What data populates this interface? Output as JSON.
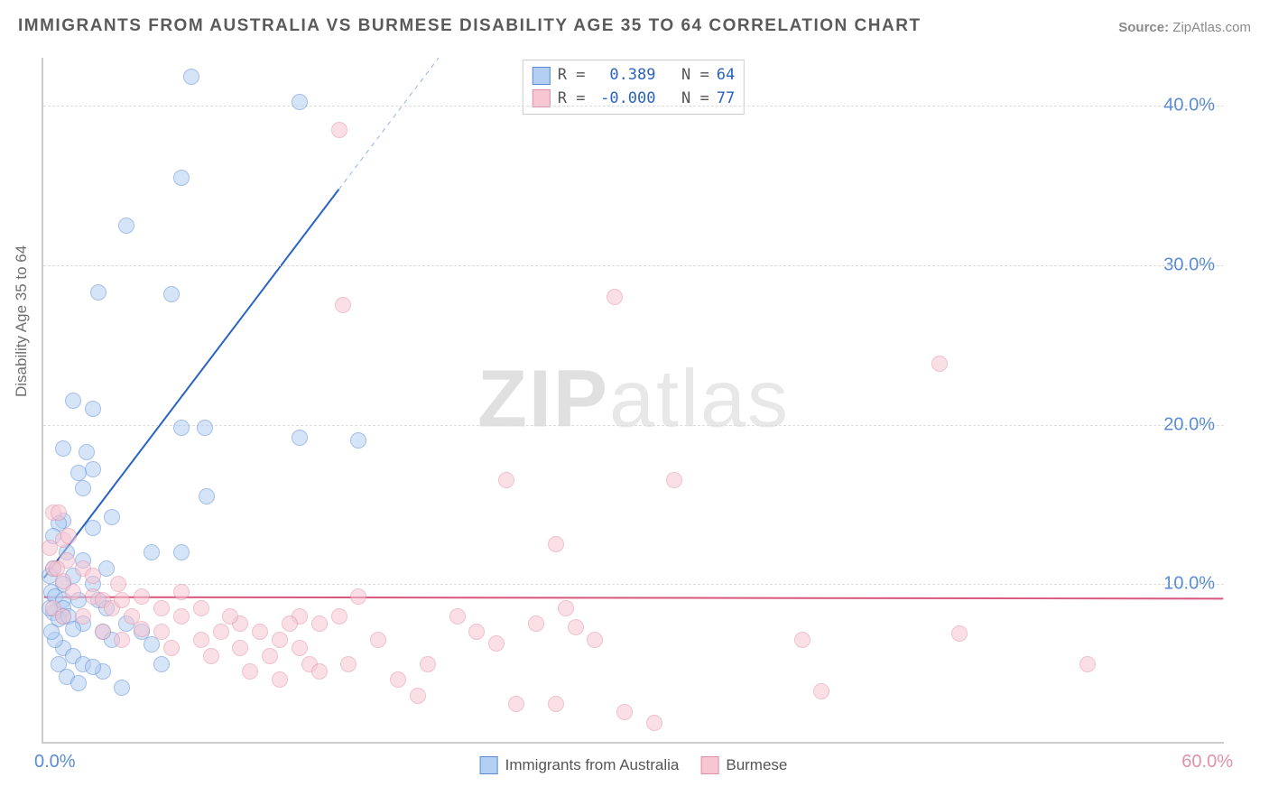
{
  "title": "IMMIGRANTS FROM AUSTRALIA VS BURMESE DISABILITY AGE 35 TO 64 CORRELATION CHART",
  "source_label": "Source:",
  "source_value": "ZipAtlas.com",
  "ylabel": "Disability Age 35 to 64",
  "watermark_zip": "ZIP",
  "watermark_atlas": "atlas",
  "chart": {
    "type": "scatter",
    "background_color": "#ffffff",
    "grid_color": "#dddddd",
    "axis_color": "#cccccc",
    "title_fontsize": 19,
    "label_fontsize": 17,
    "tick_fontsize": 20,
    "xlim": [
      0,
      60
    ],
    "ylim": [
      0,
      43
    ],
    "yticks": [
      10,
      20,
      30,
      40
    ],
    "ytick_labels": [
      "10.0%",
      "20.0%",
      "30.0%",
      "40.0%"
    ],
    "xtick_left": {
      "value": 0,
      "label": "0.0%",
      "color": "#5a8cd6"
    },
    "xtick_right": {
      "value": 60,
      "label": "60.0%",
      "color": "#e091a8"
    },
    "series": [
      {
        "name": "Immigrants from Australia",
        "key": "blue",
        "fill_color": "#b3cff2",
        "stroke_color": "#5a8cd6",
        "fill_opacity": 0.55,
        "marker_r": 9,
        "regression": {
          "y0": 10.3,
          "y_at_x60": 108,
          "solid_xmax": 15,
          "color": "#2962c4",
          "width": 2
        },
        "R": "0.389",
        "N": "64",
        "points": [
          [
            7.5,
            41.8
          ],
          [
            13.0,
            40.2
          ],
          [
            7.0,
            35.5
          ],
          [
            4.2,
            32.5
          ],
          [
            2.8,
            28.3
          ],
          [
            6.5,
            28.2
          ],
          [
            1.5,
            21.5
          ],
          [
            2.5,
            21.0
          ],
          [
            8.2,
            19.8
          ],
          [
            7.0,
            19.8
          ],
          [
            1.0,
            18.5
          ],
          [
            2.2,
            18.3
          ],
          [
            13.0,
            19.2
          ],
          [
            16.0,
            19.0
          ],
          [
            2.5,
            17.2
          ],
          [
            1.8,
            17.0
          ],
          [
            2.0,
            16.0
          ],
          [
            8.3,
            15.5
          ],
          [
            1.0,
            14.0
          ],
          [
            3.5,
            14.2
          ],
          [
            2.5,
            13.5
          ],
          [
            0.8,
            13.8
          ],
          [
            0.5,
            13.0
          ],
          [
            1.2,
            12.0
          ],
          [
            5.5,
            12.0
          ],
          [
            7.0,
            12.0
          ],
          [
            2.0,
            11.5
          ],
          [
            3.2,
            11.0
          ],
          [
            0.5,
            11.0
          ],
          [
            1.5,
            10.5
          ],
          [
            1.0,
            10.0
          ],
          [
            2.5,
            10.0
          ],
          [
            0.4,
            9.5
          ],
          [
            0.6,
            9.2
          ],
          [
            1.0,
            9.0
          ],
          [
            1.0,
            8.5
          ],
          [
            1.0,
            8.0
          ],
          [
            1.8,
            9.0
          ],
          [
            2.8,
            9.0
          ],
          [
            3.2,
            8.5
          ],
          [
            0.5,
            8.2
          ],
          [
            0.8,
            7.8
          ],
          [
            1.3,
            8.0
          ],
          [
            2.0,
            7.5
          ],
          [
            3.0,
            7.0
          ],
          [
            3.5,
            6.5
          ],
          [
            4.2,
            7.5
          ],
          [
            5.0,
            7.0
          ],
          [
            5.5,
            6.2
          ],
          [
            6.0,
            5.0
          ],
          [
            1.0,
            6.0
          ],
          [
            1.5,
            5.5
          ],
          [
            2.0,
            5.0
          ],
          [
            3.0,
            4.5
          ],
          [
            4.0,
            3.5
          ],
          [
            2.5,
            4.8
          ],
          [
            0.8,
            5.0
          ],
          [
            1.2,
            4.2
          ],
          [
            1.8,
            3.8
          ],
          [
            0.6,
            6.5
          ],
          [
            0.4,
            7.0
          ],
          [
            1.5,
            7.2
          ],
          [
            0.3,
            8.5
          ],
          [
            0.3,
            10.5
          ]
        ]
      },
      {
        "name": "Burmese",
        "key": "pink",
        "fill_color": "#f6c6d3",
        "stroke_color": "#e091a8",
        "fill_opacity": 0.55,
        "marker_r": 9,
        "regression": {
          "y0": 9.1,
          "y_at_x60": 9.0,
          "solid_xmax": 60,
          "color": "#d9567e",
          "width": 2
        },
        "R": "-0.000",
        "N": "77",
        "points": [
          [
            15.0,
            38.5
          ],
          [
            15.2,
            27.5
          ],
          [
            29.0,
            28.0
          ],
          [
            45.5,
            23.8
          ],
          [
            23.5,
            16.5
          ],
          [
            32.0,
            16.5
          ],
          [
            26.0,
            12.5
          ],
          [
            0.5,
            14.5
          ],
          [
            0.3,
            12.3
          ],
          [
            0.5,
            11.0
          ],
          [
            1.0,
            10.2
          ],
          [
            0.8,
            14.5
          ],
          [
            1.2,
            11.5
          ],
          [
            2.0,
            11.0
          ],
          [
            1.5,
            9.5
          ],
          [
            2.5,
            9.2
          ],
          [
            3.0,
            9.0
          ],
          [
            3.5,
            8.5
          ],
          [
            4.0,
            9.0
          ],
          [
            4.5,
            8.0
          ],
          [
            5.0,
            9.2
          ],
          [
            6.0,
            8.5
          ],
          [
            7.0,
            9.5
          ],
          [
            0.5,
            8.5
          ],
          [
            1.0,
            8.0
          ],
          [
            2.0,
            8.0
          ],
          [
            3.0,
            7.0
          ],
          [
            4.0,
            6.5
          ],
          [
            5.0,
            7.2
          ],
          [
            6.0,
            7.0
          ],
          [
            7.0,
            8.0
          ],
          [
            8.0,
            6.5
          ],
          [
            9.0,
            7.0
          ],
          [
            10.0,
            6.0
          ],
          [
            11.0,
            7.0
          ],
          [
            12.0,
            6.5
          ],
          [
            13.0,
            6.0
          ],
          [
            14.0,
            7.5
          ],
          [
            15.0,
            8.0
          ],
          [
            10.0,
            7.5
          ],
          [
            8.5,
            5.5
          ],
          [
            11.5,
            5.5
          ],
          [
            13.5,
            5.0
          ],
          [
            14.0,
            4.5
          ],
          [
            15.5,
            5.0
          ],
          [
            17.0,
            6.5
          ],
          [
            18.0,
            4.0
          ],
          [
            19.0,
            3.0
          ],
          [
            19.5,
            5.0
          ],
          [
            21.0,
            8.0
          ],
          [
            22.0,
            7.0
          ],
          [
            23.0,
            6.3
          ],
          [
            24.0,
            2.5
          ],
          [
            25.0,
            7.5
          ],
          [
            26.0,
            2.5
          ],
          [
            27.0,
            7.3
          ],
          [
            28.0,
            6.5
          ],
          [
            29.5,
            2.0
          ],
          [
            31.0,
            1.3
          ],
          [
            16.0,
            9.2
          ],
          [
            46.5,
            6.9
          ],
          [
            53.0,
            5.0
          ],
          [
            39.5,
            3.3
          ],
          [
            38.5,
            6.5
          ],
          [
            13.0,
            8.0
          ],
          [
            8.0,
            8.5
          ],
          [
            12.5,
            7.5
          ],
          [
            6.5,
            6.0
          ],
          [
            9.5,
            8.0
          ],
          [
            1.0,
            12.8
          ],
          [
            0.7,
            11.0
          ],
          [
            1.3,
            13.0
          ],
          [
            10.5,
            4.5
          ],
          [
            12.0,
            4.0
          ],
          [
            2.5,
            10.5
          ],
          [
            3.8,
            10.0
          ],
          [
            26.5,
            8.5
          ]
        ]
      }
    ]
  },
  "legend_top_rows": [
    {
      "swatch_fill": "#b3cff2",
      "swatch_stroke": "#5a8cd6",
      "R": "0.389",
      "N": "64",
      "value_color": "#2962c4"
    },
    {
      "swatch_fill": "#f6c6d3",
      "swatch_stroke": "#e091a8",
      "R": "-0.000",
      "N": "77",
      "value_color": "#2962c4"
    }
  ],
  "legend_bottom": [
    {
      "swatch_fill": "#b3cff2",
      "swatch_stroke": "#5a8cd6",
      "label": "Immigrants from Australia"
    },
    {
      "swatch_fill": "#f6c6d3",
      "swatch_stroke": "#e091a8",
      "label": "Burmese"
    }
  ]
}
